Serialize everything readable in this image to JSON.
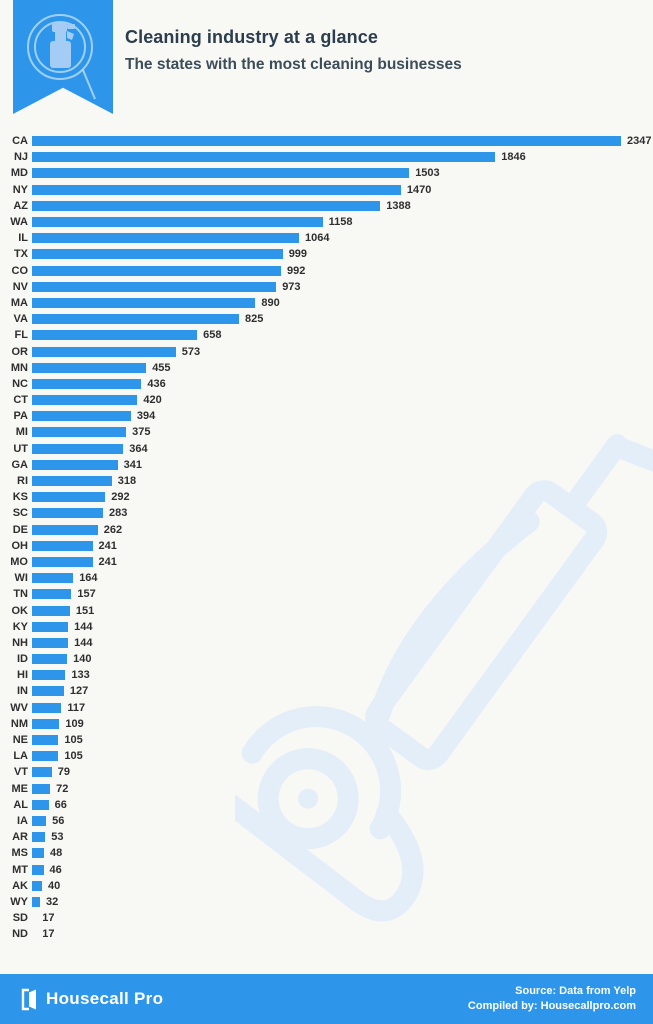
{
  "header": {
    "title": "Cleaning industry at a glance",
    "subtitle": "The states with the most cleaning businesses",
    "badge_icon": "magnifier-spray-bottle-icon"
  },
  "colors": {
    "accent": "#2E96EA",
    "background": "#F8F8F5",
    "bar": "#2E96EA",
    "watermark": "#E3EEF9",
    "title_text": "#2C3D4E",
    "label_text": "#2F2F2F",
    "footer_text": "#FFFFFF"
  },
  "chart_data": {
    "type": "bar",
    "orientation": "horizontal",
    "title": "Cleaning industry at a glance",
    "subtitle": "The states with the most cleaning businesses",
    "xlabel": "",
    "ylabel": "",
    "xlim": [
      0,
      2347
    ],
    "max_value": 2347,
    "grid": false,
    "legend": false,
    "categories": [
      "CA",
      "NJ",
      "MD",
      "NY",
      "AZ",
      "WA",
      "IL",
      "TX",
      "CO",
      "NV",
      "MA",
      "VA",
      "FL",
      "OR",
      "MN",
      "NC",
      "CT",
      "PA",
      "MI",
      "UT",
      "GA",
      "RI",
      "KS",
      "SC",
      "DE",
      "OH",
      "MO",
      "WI",
      "TN",
      "OK",
      "KY",
      "NH",
      "ID",
      "HI",
      "IN",
      "WV",
      "NM",
      "NE",
      "LA",
      "VT",
      "ME",
      "AL",
      "IA",
      "AR",
      "MS",
      "MT",
      "AK",
      "WY",
      "SD",
      "ND"
    ],
    "values": [
      2347,
      1846,
      1503,
      1470,
      1388,
      1158,
      1064,
      999,
      992,
      973,
      890,
      825,
      658,
      573,
      455,
      436,
      420,
      394,
      375,
      364,
      341,
      318,
      292,
      283,
      262,
      241,
      241,
      164,
      157,
      151,
      144,
      144,
      140,
      133,
      127,
      117,
      109,
      105,
      105,
      79,
      72,
      66,
      56,
      53,
      48,
      46,
      40,
      32,
      17,
      17
    ]
  },
  "watermark_icon": "vacuum-cleaner-watermark",
  "footer": {
    "brand": "Housecall Pro",
    "logo_icon": "housecall-pro-door-logo",
    "source_line1": "Source: Data from Yelp",
    "source_line2": "Compiled by: Housecallpro.com"
  }
}
